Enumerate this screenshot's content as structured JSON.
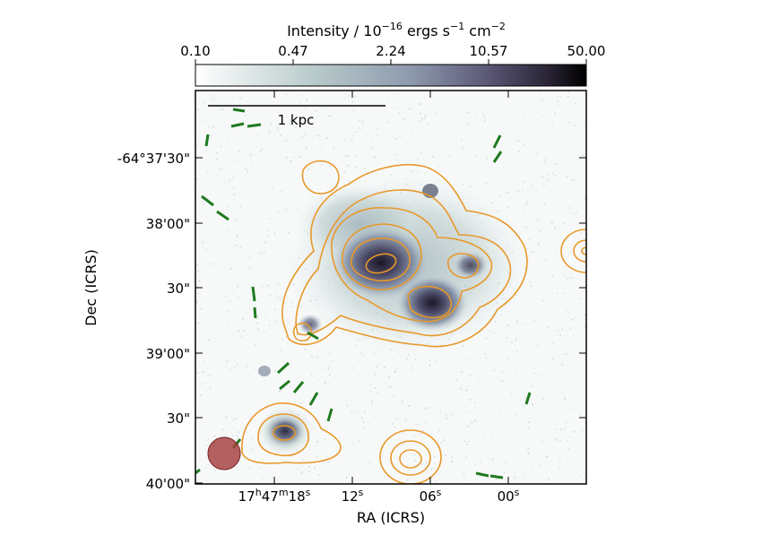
{
  "colorbar": {
    "label_main": "Intensity / 10",
    "label_exp1": "−16",
    "label_mid": " ergs s",
    "label_exp2": "−1",
    "label_mid2": " cm",
    "label_exp3": "−2",
    "ticks": [
      "0.10",
      "0.47",
      "2.24",
      "10.57",
      "50.00"
    ],
    "color_low": "#ffffff",
    "color_mid": "#7a8fa0",
    "color_high": "#000000"
  },
  "axes": {
    "xlabel": "RA (ICRS)",
    "ylabel": "Dec (ICRS)",
    "ra_ticks": [
      {
        "h": "17",
        "hu": "h",
        "m": "47",
        "mu": "m",
        "s": "18",
        "su": "s"
      },
      {
        "s": "12",
        "su": "s"
      },
      {
        "s": "06",
        "su": "s"
      },
      {
        "s": "00",
        "su": "s"
      }
    ],
    "dec_ticks": [
      "-64°37'30\"",
      "38'00\"",
      "30\"",
      "39'00\"",
      "30\"",
      "40'00\""
    ]
  },
  "scale_bar": {
    "label": "1 kpc"
  },
  "overlay_colors": {
    "contour": "#e8982a",
    "vectors": "#1f7a1f",
    "beam": "#a33a3a"
  }
}
